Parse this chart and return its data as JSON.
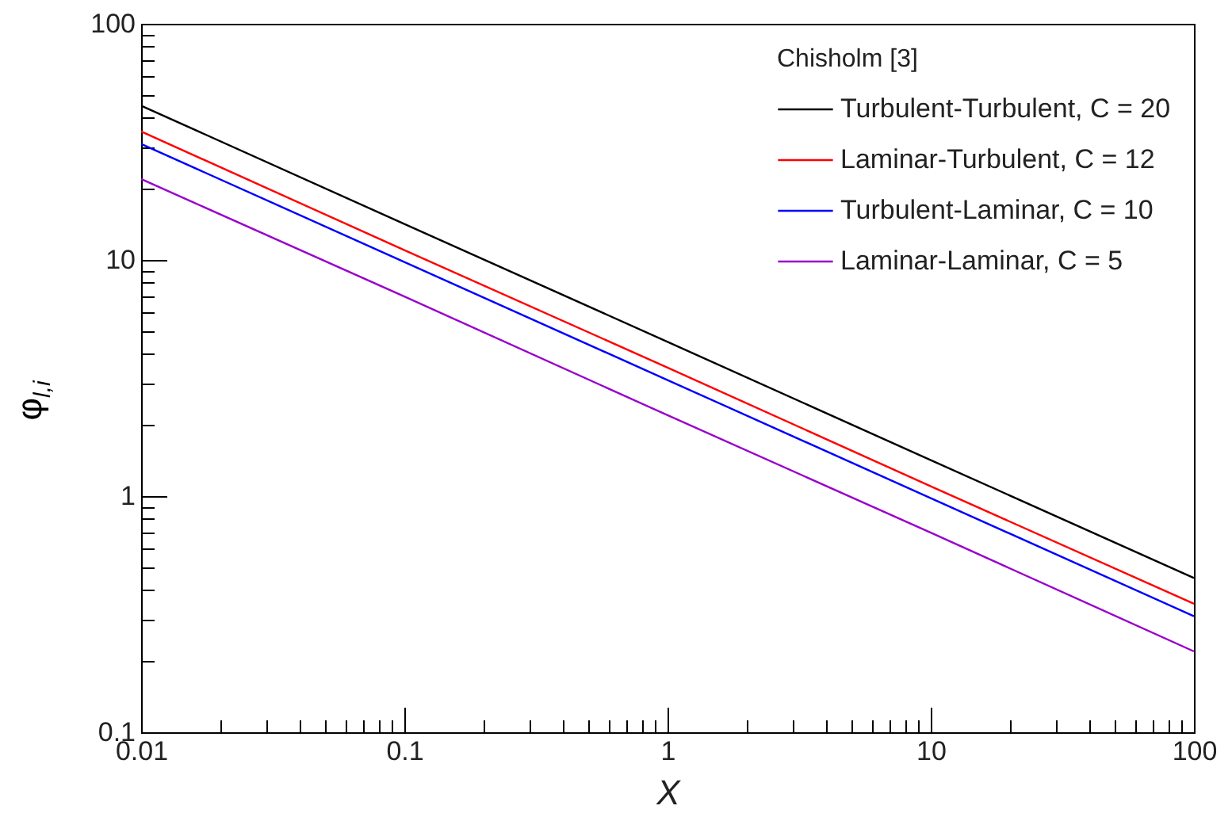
{
  "chart_data": {
    "type": "line",
    "xlabel": "X",
    "ylabel": "φ$_{l,i}$",
    "legend_title": "Chisholm [3]",
    "legend": "top right",
    "log": "xy",
    "grid": false,
    "marker": "none",
    "line_style": "solid",
    "xlim": [
      0.01,
      100
    ],
    "ylim": [
      0.1,
      100
    ],
    "xticks": [
      0.01,
      {
        "value": 0.02,
        "label": null
      },
      {
        "value": 0.03,
        "label": null
      },
      {
        "value": 0.04,
        "label": null
      },
      {
        "value": 0.05,
        "label": null
      },
      {
        "value": 0.06,
        "label": null
      },
      {
        "value": 0.07,
        "label": null
      },
      {
        "value": 0.08,
        "label": null
      },
      {
        "value": 0.09,
        "label": null
      },
      0.1,
      {
        "value": 0.2,
        "label": null
      },
      {
        "value": 0.3,
        "label": null
      },
      {
        "value": 0.4,
        "label": null
      },
      {
        "value": 0.5,
        "label": null
      },
      {
        "value": 0.6,
        "label": null
      },
      {
        "value": 0.7,
        "label": null
      },
      {
        "value": 0.8,
        "label": null
      },
      {
        "value": 0.9,
        "label": null
      },
      1,
      {
        "value": 2,
        "label": null
      },
      {
        "value": 3,
        "label": null
      },
      {
        "value": 4,
        "label": null
      },
      {
        "value": 5,
        "label": null
      },
      {
        "value": 6,
        "label": null
      },
      {
        "value": 7,
        "label": null
      },
      {
        "value": 8,
        "label": null
      },
      {
        "value": 9,
        "label": null
      },
      10,
      {
        "value": 20,
        "label": null
      },
      {
        "value": 30,
        "label": null
      },
      {
        "value": 40,
        "label": null
      },
      {
        "value": 50,
        "label": null
      },
      {
        "value": 60,
        "label": null
      },
      {
        "value": 70,
        "label": null
      },
      {
        "value": 80,
        "label": null
      },
      {
        "value": 90,
        "label": null
      },
      100
    ],
    "yticks": [
      0.1,
      {
        "value": 0.2,
        "label": null
      },
      {
        "value": 0.3,
        "label": null
      },
      {
        "value": 0.4,
        "label": null
      },
      {
        "value": 0.5,
        "label": null
      },
      {
        "value": 0.6,
        "label": null
      },
      {
        "value": 0.7,
        "label": null
      },
      {
        "value": 0.8,
        "label": null
      },
      {
        "value": 0.9,
        "label": null
      },
      1,
      {
        "value": 2,
        "label": null
      },
      {
        "value": 3,
        "label": null
      },
      {
        "value": 4,
        "label": null
      },
      {
        "value": 5,
        "label": null
      },
      {
        "value": 6,
        "label": null
      },
      {
        "value": 7,
        "label": null
      },
      {
        "value": 8,
        "label": null
      },
      {
        "value": 9,
        "label": null
      },
      10,
      {
        "value": 20,
        "label": null
      },
      {
        "value": 30,
        "label": null
      },
      {
        "value": 40,
        "label": null
      },
      {
        "value": 50,
        "label": null
      },
      {
        "value": 60,
        "label": null
      },
      {
        "value": 70,
        "label": null
      },
      {
        "value": 80,
        "label": null
      },
      {
        "value": 90,
        "label": null
      },
      100
    ],
    "x": [
      0.01,
      0.1,
      1,
      10,
      100
    ],
    "series": [
      {
        "name": "Turbulent-Turbulent, C = 20",
        "color": "#000000",
        "values": [
          45,
          14.2,
          4.5,
          1.42,
          0.45
        ]
      },
      {
        "name": "Laminar-Turbulent, C = 12",
        "color": "#ff0000",
        "values": [
          35,
          11,
          3.5,
          1.1,
          0.35
        ]
      },
      {
        "name": "Turbulent-Laminar, C = 10",
        "color": "#0000ff",
        "values": [
          31,
          9.8,
          3.1,
          0.98,
          0.31
        ]
      },
      {
        "name": "Laminar-Laminar, C = 5",
        "color": "#9900cc",
        "values": [
          22,
          7,
          2.2,
          0.7,
          0.22
        ]
      }
    ]
  }
}
